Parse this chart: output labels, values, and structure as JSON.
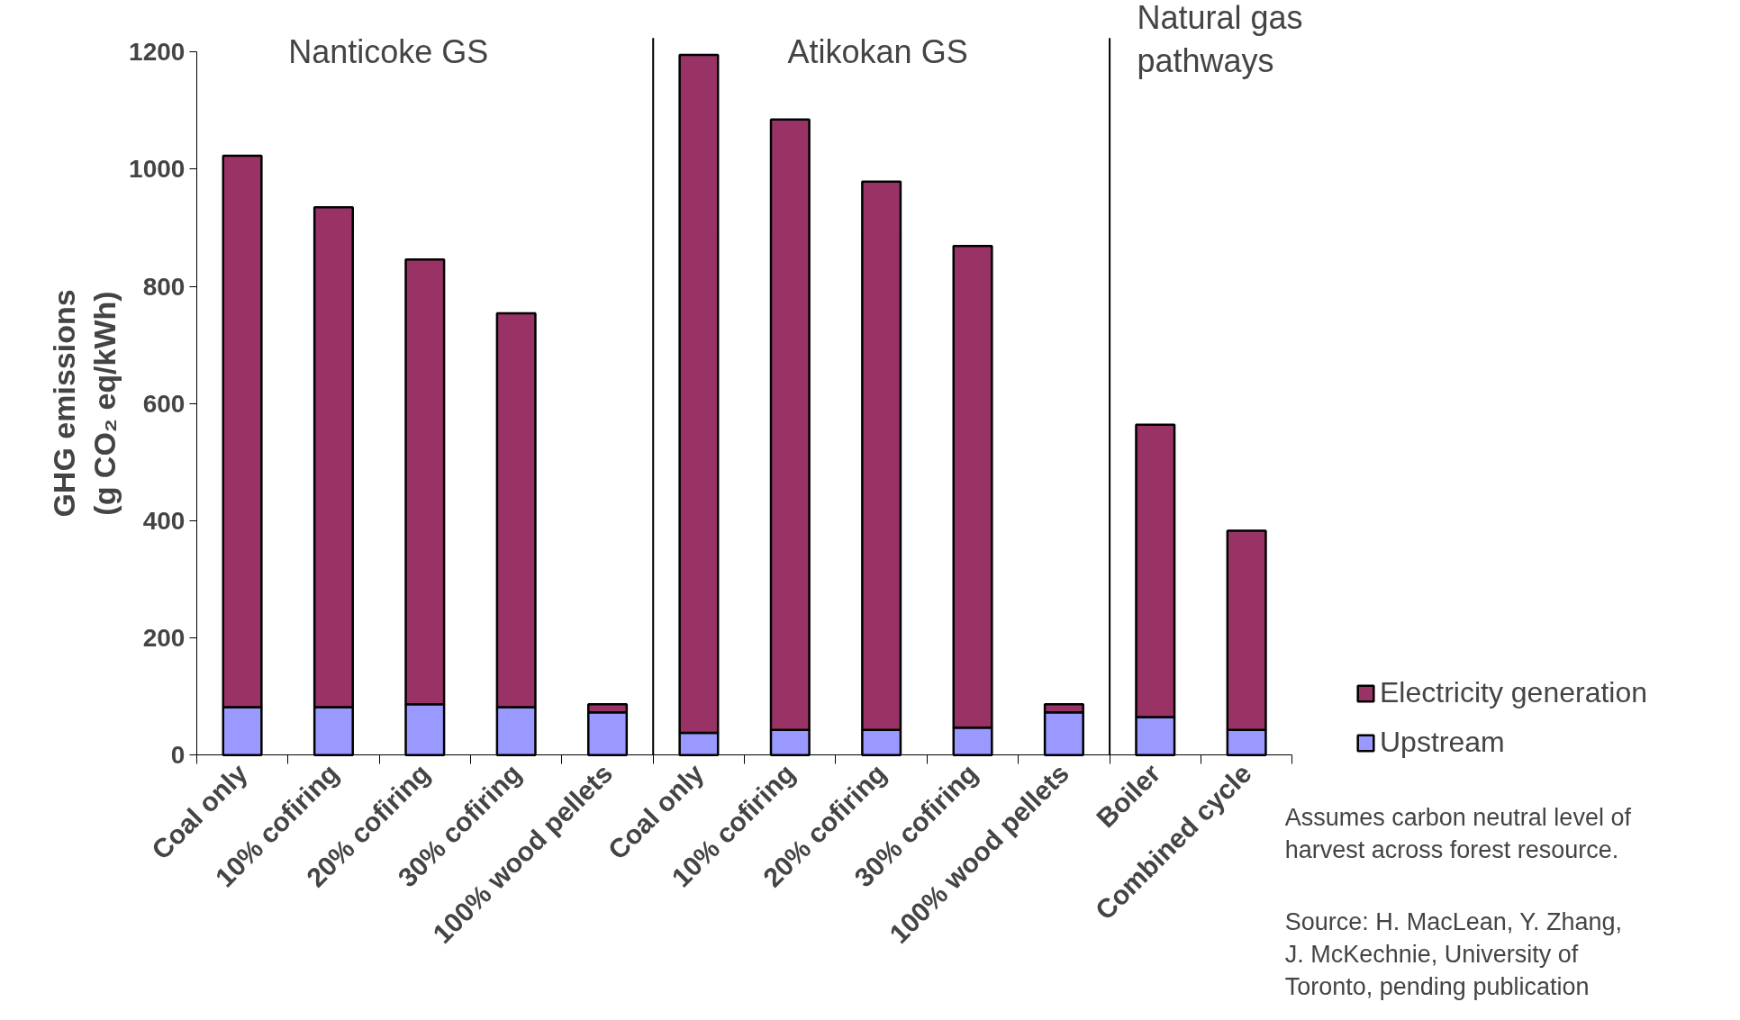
{
  "chart_data": {
    "type": "bar",
    "stacked": true,
    "ylabel": "GHG emissions\n(g CO₂ eq/kWh)",
    "categories": [
      "Coal only",
      "10% cofiring",
      "20% cofiring",
      "30% cofiring",
      "100% wood pellets",
      "Coal only",
      "10% cofiring",
      "20% cofiring",
      "30% cofiring",
      "100% wood pellets",
      "Boiler",
      "Combined cycle"
    ],
    "series": [
      {
        "name": "Upstream",
        "color": "#9999ff",
        "values": [
          82,
          82,
          87,
          82,
          73,
          38,
          43,
          43,
          47,
          73,
          65,
          43
        ]
      },
      {
        "name": "Electricity generation",
        "color": "#993366",
        "values": [
          941,
          853,
          759,
          672,
          14,
          1157,
          1042,
          936,
          822,
          14,
          499,
          340
        ]
      }
    ],
    "ylim": [
      0,
      1200
    ],
    "yticks": [
      0,
      200,
      400,
      600,
      800,
      1000,
      1200
    ],
    "annotations": [
      "Nanticoke GS",
      "Atikokan GS",
      "Natural gas\npathways",
      "Assumes carbon neutral level of\nharvest across forest resource.",
      "Source: H. MacLean, Y. Zhang,\nJ. McKechnie, University of\nToronto, pending publication"
    ],
    "legend": "right",
    "grid": false
  }
}
